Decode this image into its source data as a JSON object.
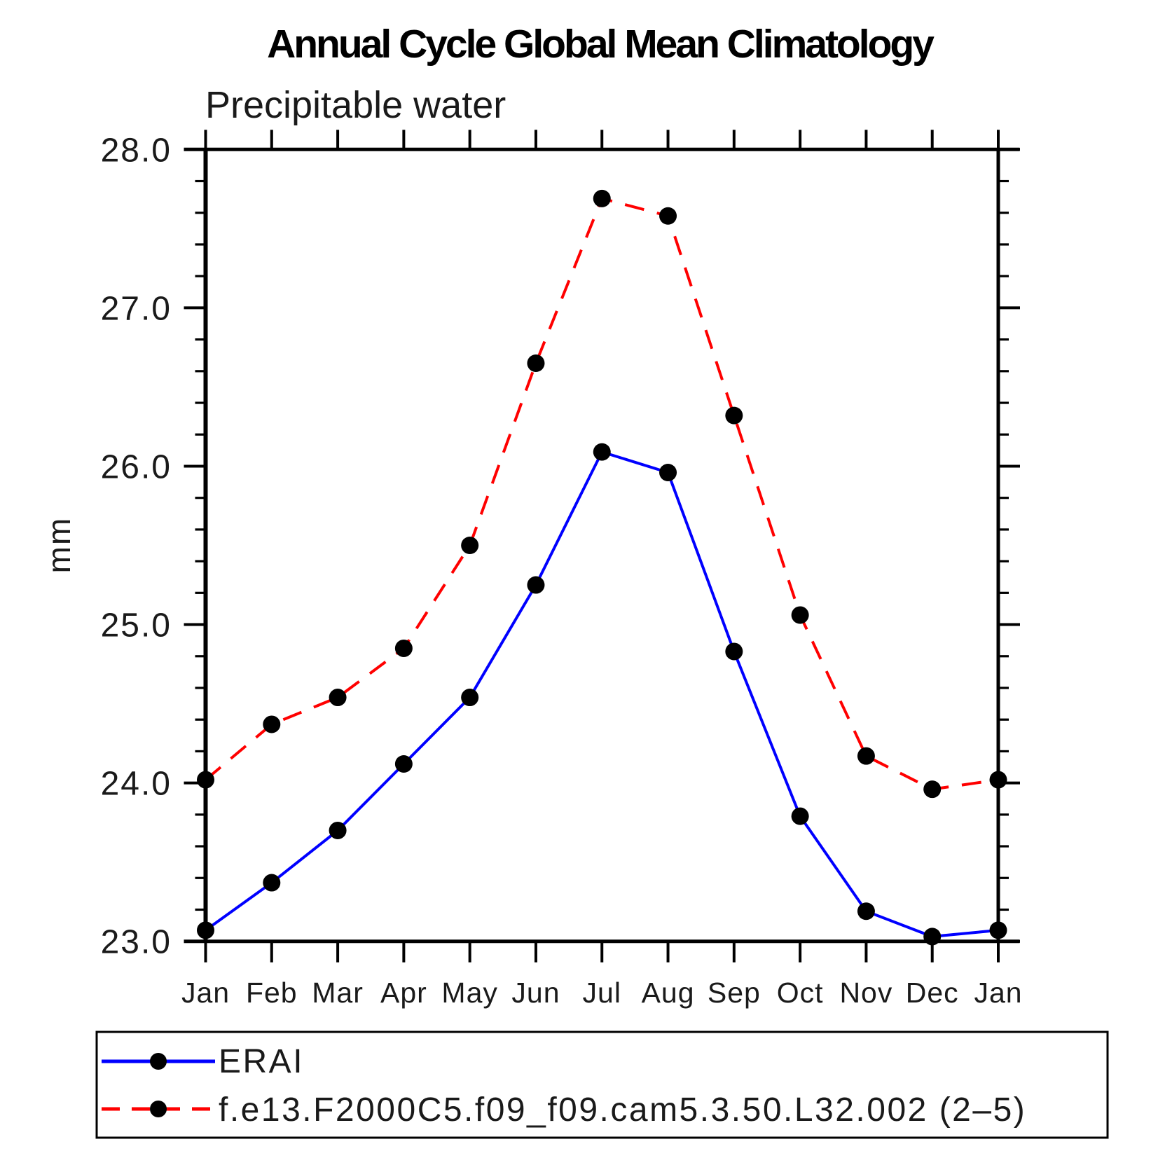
{
  "chart_data": {
    "type": "line",
    "title": "Annual Cycle Global Mean Climatology",
    "subtitle": "Precipitable water",
    "xlabel": "",
    "ylabel": "mm",
    "ylim": [
      23.0,
      28.0
    ],
    "ytick_major": [
      23.0,
      24.0,
      25.0,
      26.0,
      27.0,
      28.0
    ],
    "ytick_major_labels": [
      "23.0",
      "24.0",
      "25.0",
      "26.0",
      "27.0",
      "28.0"
    ],
    "ytick_minor_interval": 0.2,
    "grid": false,
    "legend_position": "bottom",
    "x_categories": [
      "Jan",
      "Feb",
      "Mar",
      "Apr",
      "May",
      "Jun",
      "Jul",
      "Aug",
      "Sep",
      "Oct",
      "Nov",
      "Dec",
      "Jan"
    ],
    "series": [
      {
        "name": "ERAI",
        "color": "#0000ff",
        "line_style": "solid",
        "marker": "circle",
        "marker_color": "#000000",
        "values": [
          23.07,
          23.37,
          23.7,
          24.12,
          24.54,
          25.25,
          26.09,
          25.96,
          24.83,
          23.79,
          23.19,
          23.03,
          23.07
        ]
      },
      {
        "name": "f.e13.F2000C5.f09_f09.cam5.3.50.L32.002 (2–5)",
        "color": "#ff0000",
        "line_style": "dashed",
        "marker": "circle",
        "marker_color": "#000000",
        "values": [
          24.02,
          24.37,
          24.54,
          24.85,
          25.5,
          26.65,
          27.69,
          27.58,
          26.32,
          25.06,
          24.17,
          23.96,
          24.02
        ]
      }
    ]
  }
}
